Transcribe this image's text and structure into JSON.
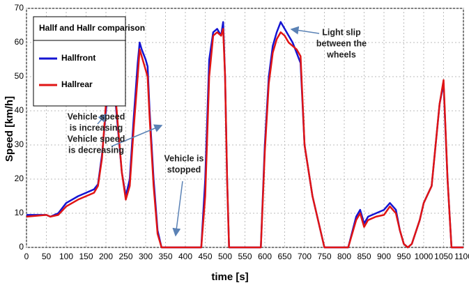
{
  "chart_data": {
    "type": "line",
    "title": "Hallf and Hallr comparison",
    "x_label": "time [s]",
    "y_label": "Speed [km/h]",
    "x": [
      0,
      50,
      60,
      80,
      100,
      130,
      150,
      170,
      180,
      190,
      200,
      210,
      220,
      230,
      240,
      250,
      260,
      270,
      280,
      285,
      290,
      300,
      305,
      310,
      320,
      330,
      340,
      440,
      450,
      460,
      470,
      480,
      490,
      495,
      500,
      505,
      510,
      590,
      600,
      610,
      620,
      630,
      640,
      650,
      660,
      670,
      680,
      690,
      700,
      720,
      740,
      750,
      810,
      830,
      840,
      850,
      860,
      880,
      900,
      915,
      930,
      940,
      950,
      960,
      970,
      990,
      1000,
      1020,
      1030,
      1040,
      1050,
      1060,
      1070,
      1100
    ],
    "series": [
      {
        "name": "Hallfront",
        "color": "#1414d2",
        "values": [
          9.5,
          9.5,
          9,
          10,
          13,
          15,
          16,
          17,
          18.5,
          27,
          40,
          52,
          48,
          35,
          22,
          15,
          20,
          38,
          54,
          60,
          58,
          55,
          53,
          40,
          20,
          5,
          0,
          0,
          20,
          55,
          63,
          64,
          62,
          66,
          50,
          20,
          0,
          0,
          30,
          50,
          59,
          63,
          66,
          64,
          62,
          60,
          57,
          54,
          30,
          15,
          5,
          0,
          0,
          9,
          11,
          7,
          9,
          10,
          11,
          13,
          11,
          5,
          1,
          0,
          1,
          8,
          13,
          18,
          30,
          42,
          48,
          20,
          0,
          0
        ]
      },
      {
        "name": "Hallrear",
        "color": "#e01414",
        "values": [
          9,
          9.5,
          9,
          9.5,
          12,
          14,
          15,
          16,
          18,
          26,
          42,
          54,
          50,
          36,
          22,
          14,
          18,
          35,
          50,
          58,
          56,
          52,
          50,
          38,
          18,
          4,
          0,
          0,
          15,
          50,
          62,
          63,
          62,
          64,
          50,
          20,
          0,
          0,
          28,
          48,
          57,
          61,
          63,
          62,
          60,
          59,
          58,
          56,
          30,
          15,
          5,
          0,
          0,
          8,
          10,
          6,
          8,
          9,
          9.5,
          12,
          10,
          5,
          1,
          0,
          1,
          8,
          13,
          18,
          30,
          42,
          49,
          20,
          0,
          0
        ]
      }
    ],
    "xlim": [
      0,
      1100
    ],
    "xticks": [
      0,
      50,
      100,
      150,
      200,
      250,
      300,
      350,
      400,
      450,
      500,
      550,
      600,
      650,
      700,
      750,
      800,
      850,
      900,
      950,
      1000,
      1050,
      1100
    ],
    "ylim": [
      0,
      70
    ],
    "yticks": [
      0,
      10,
      20,
      30,
      40,
      50,
      60,
      70
    ],
    "grid": true,
    "annotations": [
      {
        "lines": [
          "Vehicle speed",
          "is increasing"
        ]
      },
      {
        "lines": [
          "Vehicle speed",
          "is decreasing"
        ]
      },
      {
        "lines": [
          "Vehicle is",
          "stopped"
        ]
      },
      {
        "lines": [
          "Light slip",
          "between the",
          "wheels"
        ]
      }
    ]
  }
}
